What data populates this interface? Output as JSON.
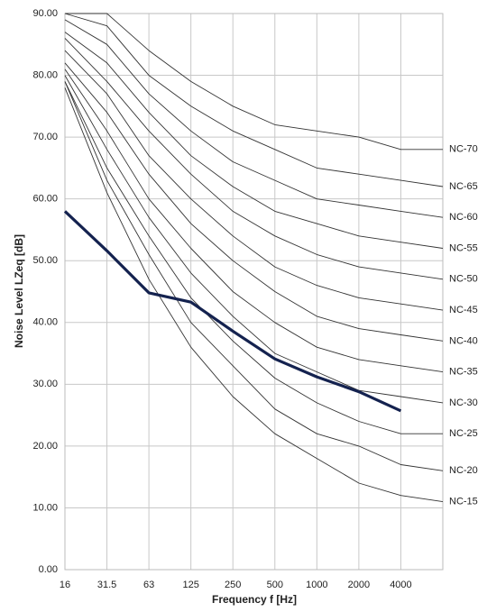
{
  "chart_data": {
    "type": "line",
    "xlabel": "Frequency f [Hz]",
    "ylabel": "Noise Level LZeq [dB]",
    "categories": [
      "16",
      "31.5",
      "63",
      "125",
      "250",
      "500",
      "1000",
      "2000",
      "4000",
      null
    ],
    "ylim": [
      0,
      90
    ],
    "yticks": [
      {
        "value": 0,
        "label": "0.00"
      },
      {
        "value": 10,
        "label": "10.00"
      },
      {
        "value": 20,
        "label": "20.00"
      },
      {
        "value": 30,
        "label": "30.00"
      },
      {
        "value": 40,
        "label": "40.00"
      },
      {
        "value": 50,
        "label": "50.00"
      },
      {
        "value": 60,
        "label": "60.00"
      },
      {
        "value": 70,
        "label": "70.00"
      },
      {
        "value": 80,
        "label": "80.00"
      },
      {
        "value": 90,
        "label": "90.00"
      }
    ],
    "grid": true,
    "series": [
      {
        "name": "NC-70",
        "color": "#333333",
        "values": [
          90,
          90,
          84,
          79,
          75,
          72,
          71,
          70,
          68,
          68
        ]
      },
      {
        "name": "NC-65",
        "color": "#333333",
        "values": [
          90,
          88,
          80,
          75,
          71,
          68,
          65,
          64,
          63,
          62
        ]
      },
      {
        "name": "NC-60",
        "color": "#333333",
        "values": [
          89,
          85,
          77,
          71,
          66,
          63,
          60,
          59,
          58,
          57
        ]
      },
      {
        "name": "NC-55",
        "color": "#333333",
        "values": [
          87,
          82,
          74,
          67,
          62,
          58,
          56,
          54,
          53,
          52
        ]
      },
      {
        "name": "NC-50",
        "color": "#333333",
        "values": [
          86,
          79,
          71,
          64,
          58,
          54,
          51,
          49,
          48,
          47
        ]
      },
      {
        "name": "NC-45",
        "color": "#333333",
        "values": [
          84,
          77,
          67,
          60,
          54,
          49,
          46,
          44,
          43,
          42
        ]
      },
      {
        "name": "NC-40",
        "color": "#333333",
        "values": [
          82,
          74,
          64,
          56,
          50,
          45,
          41,
          39,
          38,
          37
        ]
      },
      {
        "name": "NC-35",
        "color": "#333333",
        "values": [
          81,
          71,
          60,
          52,
          45,
          40,
          36,
          34,
          33,
          32
        ]
      },
      {
        "name": "NC-30",
        "color": "#333333",
        "values": [
          80,
          68,
          57,
          48,
          41,
          35,
          32,
          29,
          28,
          27
        ]
      },
      {
        "name": "NC-25",
        "color": "#333333",
        "values": [
          79,
          65,
          54,
          44,
          37,
          31,
          27,
          24,
          22,
          22
        ]
      },
      {
        "name": "NC-20",
        "color": "#333333",
        "values": [
          79,
          63,
          51,
          40,
          33,
          26,
          22,
          20,
          17,
          16
        ]
      },
      {
        "name": "NC-15",
        "color": "#333333",
        "values": [
          78,
          61,
          47,
          36,
          28,
          22,
          18,
          14,
          12,
          11
        ]
      },
      {
        "color": "#14224f",
        "values": [
          58,
          51.6,
          44.8,
          43.3,
          38.6,
          34.1,
          31.2,
          28.8,
          25.7,
          null
        ]
      }
    ]
  }
}
